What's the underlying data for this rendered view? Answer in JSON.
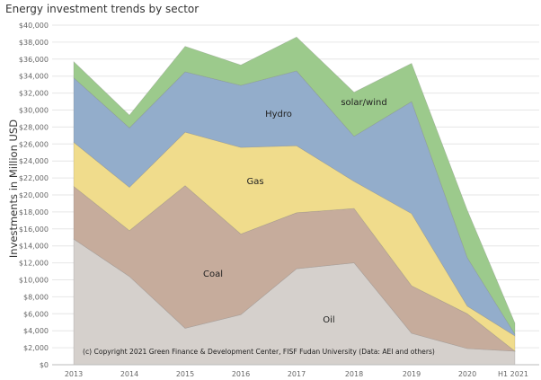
{
  "title": "Energy investment trends by sector",
  "chart_data": {
    "type": "area",
    "stacked": true,
    "title": "Energy investment trends by sector",
    "xlabel": "",
    "ylabel": "Investments in Million USD",
    "categories": [
      "2013",
      "2014",
      "2015",
      "2016",
      "2017",
      "2018",
      "2019",
      "2020",
      "H1 2021"
    ],
    "ylim": [
      0,
      40000
    ],
    "y_ticks": [
      0,
      2000,
      4000,
      6000,
      8000,
      10000,
      12000,
      14000,
      16000,
      18000,
      20000,
      22000,
      24000,
      26000,
      28000,
      30000,
      32000,
      34000,
      36000,
      38000,
      40000
    ],
    "y_tick_labels": [
      "$0",
      "$2,000",
      "$4,000",
      "$6,000",
      "$8,000",
      "$10,000",
      "$12,000",
      "$14,000",
      "$16,000",
      "$18,000",
      "$20,000",
      "$22,000",
      "$24,000",
      "$26,000",
      "$28,000",
      "$30,000",
      "$32,000",
      "$34,000",
      "$36,000",
      "$38,000",
      "$40,000"
    ],
    "x_tick_labels": [
      "2013",
      "2014",
      "2015",
      "2016",
      "2017",
      "2018",
      "2019",
      "2020",
      "H1 2021"
    ],
    "grid": "horizontal",
    "legend": "none",
    "series": [
      {
        "name": "Oil",
        "color": "#d5d0cc",
        "values": [
          14800,
          10400,
          4300,
          5900,
          11300,
          12000,
          3700,
          1900,
          1600
        ]
      },
      {
        "name": "Coal",
        "color": "#c6ac9c",
        "values": [
          6200,
          5400,
          16800,
          9500,
          6600,
          6400,
          5600,
          4100,
          0
        ]
      },
      {
        "name": "Gas",
        "color": "#f0dc8c",
        "values": [
          5200,
          5100,
          6300,
          10200,
          7900,
          3200,
          8500,
          900,
          1800
        ]
      },
      {
        "name": "Hydro",
        "color": "#93adcb",
        "values": [
          7600,
          7000,
          7100,
          7300,
          8800,
          5300,
          13200,
          5700,
          200
        ]
      },
      {
        "name": "solar/wind",
        "color": "#9cca8c",
        "values": [
          1900,
          1500,
          3000,
          2400,
          4000,
          5200,
          4500,
          5600,
          1300
        ]
      }
    ],
    "area_labels": [
      "Oil",
      "Coal",
      "Gas",
      "Hydro",
      "solar/wind"
    ],
    "annotation": "(c) Copyright 2021 Green Finance & Development Center, FISF Fudan University (Data: AEI and others)"
  }
}
